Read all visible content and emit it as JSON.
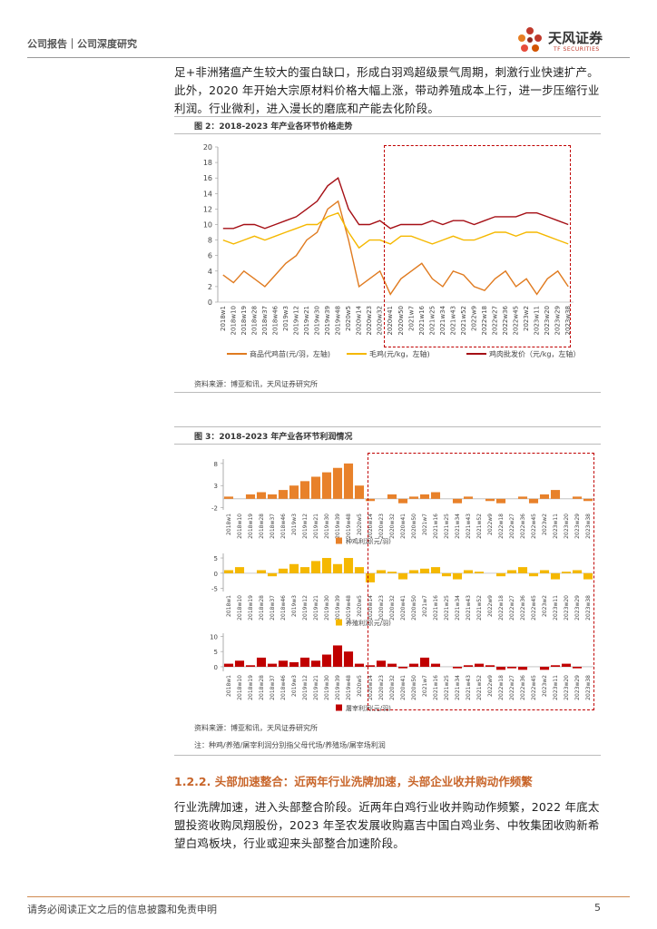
{
  "header": {
    "left": "公司报告｜公司深度研究",
    "logo_cn": "天风证券",
    "logo_en": "TF SECURITIES"
  },
  "paragraph1": "足+非洲猪瘟产生较大的蛋白缺口，形成白羽鸡超级景气周期，刺激行业快速扩产。此外，2020 年开始大宗原材料价格大幅上涨，带动养殖成本上行，进一步压缩行业利润。行业微利，进入漫长的磨底和产能去化阶段。",
  "figures": [
    {
      "caption": "图 2：2018-2023 年产业各环节价格走势",
      "source": "资料来源：博亚和讯，天风证券研究所"
    },
    {
      "caption": "图 3：2018-2023 年产业各环节利润情况",
      "source": "资料来源：博亚和讯，天风证券研究所",
      "note": "注：种鸡/养殖/屠宰利润分别指父母代场/养殖场/屠宰场利润"
    }
  ],
  "section": {
    "heading": "1.2.2. 头部加速整合：近两年行业洗牌加速，头部企业收并购动作频繁",
    "body": "行业洗牌加速，进入头部整合阶段。近两年白鸡行业收并购动作频繁，2022 年底太盟投资收购凤翔股份，2023 年圣农发展收购嘉吉中国白鸡业务、中牧集团收购新希望白鸡板块，行业或迎来头部整合加速阶段。"
  },
  "footer": {
    "left": "请务必阅读正文之后的信息披露和免责申明",
    "page": "5"
  },
  "chart_data": [
    {
      "type": "line",
      "categories": [
        "2018w1",
        "2018w10",
        "2018w19",
        "2018w28",
        "2018w37",
        "2018w46",
        "2019w3",
        "2019w12",
        "2019w21",
        "2019w30",
        "2019w39",
        "2019w48",
        "2020w5",
        "2020w14",
        "2020w23",
        "2020w32",
        "2020w41",
        "2020w50",
        "2021w7",
        "2021w16",
        "2021w25",
        "2021w34",
        "2021w43",
        "2021w52",
        "2022w9",
        "2022w18",
        "2022w27",
        "2022w36",
        "2022w45",
        "2023w2",
        "2023w11",
        "2023w20",
        "2023w29",
        "2023w38"
      ],
      "series": [
        {
          "name": "商品代鸡苗(元/羽，左轴)",
          "color": "#e07b20",
          "values": [
            3.5,
            2.5,
            4,
            3,
            2,
            3.5,
            5,
            6,
            8,
            9,
            12,
            13,
            8,
            2,
            3,
            4,
            1,
            3,
            4,
            5,
            3,
            2,
            4,
            3.5,
            2,
            1.5,
            3,
            4,
            2,
            3,
            1,
            3,
            4,
            2
          ]
        },
        {
          "name": "毛鸡(元/kg，左轴)",
          "color": "#f5b800",
          "values": [
            8,
            7.5,
            8,
            8.5,
            8,
            8.5,
            9,
            9.5,
            10,
            10,
            11,
            11.5,
            9,
            7,
            8,
            8,
            7.5,
            8.5,
            8.5,
            8,
            7.5,
            8,
            8.5,
            8,
            8,
            8.5,
            9,
            9,
            8.5,
            9,
            9,
            8.5,
            8,
            7.5
          ]
        },
        {
          "name": "鸡肉批发价（元/kg，左轴）",
          "color": "#a50f15",
          "values": [
            9.5,
            9.5,
            10,
            10,
            9.5,
            10,
            10.5,
            11,
            12,
            13,
            15,
            16,
            12,
            10,
            10,
            10.5,
            9.5,
            10,
            10,
            10,
            10.5,
            10,
            10.5,
            10.5,
            10,
            10.5,
            11,
            11,
            11,
            11.5,
            11.5,
            11,
            10.5,
            10
          ]
        }
      ],
      "ylim": [
        0,
        20
      ],
      "yticks": [
        0,
        2,
        4,
        6,
        8,
        10,
        12,
        14,
        16,
        18,
        20
      ],
      "grid": false,
      "legend": "bottom"
    },
    {
      "type": "bar",
      "categories": [
        "2018w1",
        "2018w10",
        "2018w19",
        "2018w28",
        "2018w37",
        "2018w46",
        "2019w3",
        "2019w12",
        "2019w21",
        "2019w30",
        "2019w39",
        "2019w48",
        "2020w5",
        "2020w14",
        "2020w23",
        "2020w32",
        "2020w41",
        "2020w50",
        "2021w7",
        "2021w16",
        "2021w25",
        "2021w34",
        "2021w43",
        "2021w52",
        "2022w9",
        "2022w18",
        "2022w27",
        "2022w36",
        "2022w45",
        "2023w2",
        "2023w11",
        "2023w20",
        "2023w29",
        "2023w38"
      ],
      "series": [
        {
          "name": "种鸡利润(元/羽)",
          "color": "#e8812a",
          "values": [
            0.5,
            0,
            1,
            1.5,
            1,
            2,
            3,
            4,
            5,
            6,
            7,
            8,
            3,
            -0.5,
            0,
            1,
            -1,
            0.5,
            1,
            1.5,
            0,
            -1,
            0.5,
            0,
            -0.5,
            -1,
            0,
            0.5,
            -1,
            1,
            2,
            0,
            0.5,
            -0.5
          ]
        }
      ],
      "ylim": [
        -2.5,
        9
      ],
      "yticks": [
        -2,
        3,
        8
      ],
      "grid": false,
      "legend": "bottom"
    },
    {
      "type": "bar",
      "categories": [
        "2018w1",
        "2018w10",
        "2018w19",
        "2018w28",
        "2018w37",
        "2018w46",
        "2019w3",
        "2019w12",
        "2019w21",
        "2019w30",
        "2019w39",
        "2019w48",
        "2020w5",
        "2020w14",
        "2020w23",
        "2020w32",
        "2020w41",
        "2020w50",
        "2021w7",
        "2021w16",
        "2021w25",
        "2021w34",
        "2021w43",
        "2021w52",
        "2022w9",
        "2022w18",
        "2022w27",
        "2022w36",
        "2022w45",
        "2023w2",
        "2023w11",
        "2023w20",
        "2023w29",
        "2023w38"
      ],
      "series": [
        {
          "name": "养殖利润(元/羽)",
          "color": "#f5b800",
          "values": [
            1,
            2,
            0,
            1,
            -1,
            1.5,
            3,
            2,
            4,
            5,
            3,
            5,
            2,
            -3,
            1,
            0.5,
            -2,
            1,
            1.5,
            2,
            -1,
            -2,
            1,
            0.5,
            0,
            -1,
            1,
            2,
            -1,
            1,
            -2,
            0.5,
            1,
            -2
          ]
        }
      ],
      "ylim": [
        -6,
        6.5
      ],
      "yticks": [
        -5,
        0,
        5
      ],
      "grid": false,
      "legend": "bottom"
    },
    {
      "type": "bar",
      "categories": [
        "2018w1",
        "2018w10",
        "2018w19",
        "2018w28",
        "2018w37",
        "2018w46",
        "2019w3",
        "2019w12",
        "2019w21",
        "2019w30",
        "2019w39",
        "2019w48",
        "2020w5",
        "2020w14",
        "2020w23",
        "2020w32",
        "2020w41",
        "2020w50",
        "2021w7",
        "2021w16",
        "2021w25",
        "2021w34",
        "2021w43",
        "2021w52",
        "2022w9",
        "2022w18",
        "2022w27",
        "2022w36",
        "2022w45",
        "2023w2",
        "2023w11",
        "2023w20",
        "2023w29",
        "2023w38"
      ],
      "series": [
        {
          "name": "屠宰利润(元/羽)",
          "color": "#c00000",
          "values": [
            1,
            2,
            0.5,
            3,
            1,
            2,
            1.5,
            3,
            2,
            4,
            7,
            5,
            1,
            0.5,
            2,
            1,
            -0.5,
            1,
            3,
            1,
            0,
            -0.5,
            0.5,
            1,
            0.5,
            -1,
            -0.5,
            -1,
            0,
            -1,
            0.5,
            1,
            -0.5,
            0
          ]
        }
      ],
      "ylim": [
        -1.5,
        11
      ],
      "yticks": [
        0,
        5,
        10
      ],
      "grid": false,
      "legend": "bottom"
    }
  ]
}
